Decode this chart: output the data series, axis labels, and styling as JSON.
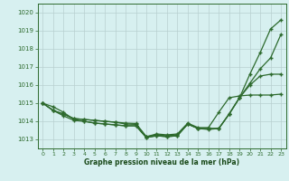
{
  "x": [
    0,
    1,
    2,
    3,
    4,
    5,
    6,
    7,
    8,
    9,
    10,
    11,
    12,
    13,
    14,
    15,
    16,
    17,
    18,
    19,
    20,
    21,
    22,
    23
  ],
  "line1": [
    1015.0,
    1014.8,
    1014.5,
    1014.1,
    1014.0,
    1013.9,
    1013.85,
    1013.8,
    1013.75,
    1013.75,
    1013.1,
    1013.2,
    1013.15,
    1013.2,
    1013.85,
    1013.6,
    1013.6,
    1013.6,
    1014.4,
    1015.3,
    1016.6,
    1017.8,
    1019.1,
    1019.6
  ],
  "line2": [
    1015.0,
    1014.6,
    1014.3,
    1014.05,
    1014.0,
    1013.9,
    1013.85,
    1013.8,
    1013.75,
    1013.75,
    1013.1,
    1013.2,
    1013.15,
    1013.2,
    1013.85,
    1013.6,
    1013.6,
    1013.6,
    1014.4,
    1015.3,
    1016.1,
    1016.9,
    1017.5,
    1018.8
  ],
  "line3": [
    1015.0,
    1014.6,
    1014.4,
    1014.15,
    1014.1,
    1014.05,
    1014.0,
    1013.95,
    1013.85,
    1013.83,
    1013.15,
    1013.25,
    1013.2,
    1013.25,
    1013.85,
    1013.6,
    1013.55,
    1013.6,
    1014.4,
    1015.3,
    1016.0,
    1016.5,
    1016.6,
    1016.6
  ],
  "line4": [
    1015.0,
    1014.6,
    1014.4,
    1014.15,
    1014.1,
    1014.05,
    1014.0,
    1013.95,
    1013.9,
    1013.88,
    1013.15,
    1013.3,
    1013.25,
    1013.3,
    1013.9,
    1013.65,
    1013.65,
    1014.5,
    1015.3,
    1015.4,
    1015.45,
    1015.45,
    1015.45,
    1015.5
  ],
  "ylim": [
    1012.5,
    1020.5
  ],
  "yticks": [
    1013,
    1014,
    1015,
    1016,
    1017,
    1018,
    1019,
    1020
  ],
  "xticks": [
    0,
    1,
    2,
    3,
    4,
    5,
    6,
    7,
    8,
    9,
    10,
    11,
    12,
    13,
    14,
    15,
    16,
    17,
    18,
    19,
    20,
    21,
    22,
    23
  ],
  "line_color": "#2d6a2d",
  "bg_color": "#d7f0f0",
  "grid_color": "#b8d0d0",
  "xlabel": "Graphe pression niveau de la mer (hPa)",
  "xlabel_color": "#1a4a1a",
  "marker": "+",
  "markersize": 3,
  "linewidth": 0.9,
  "tick_fontsize": 5,
  "xlabel_fontsize": 5.5
}
